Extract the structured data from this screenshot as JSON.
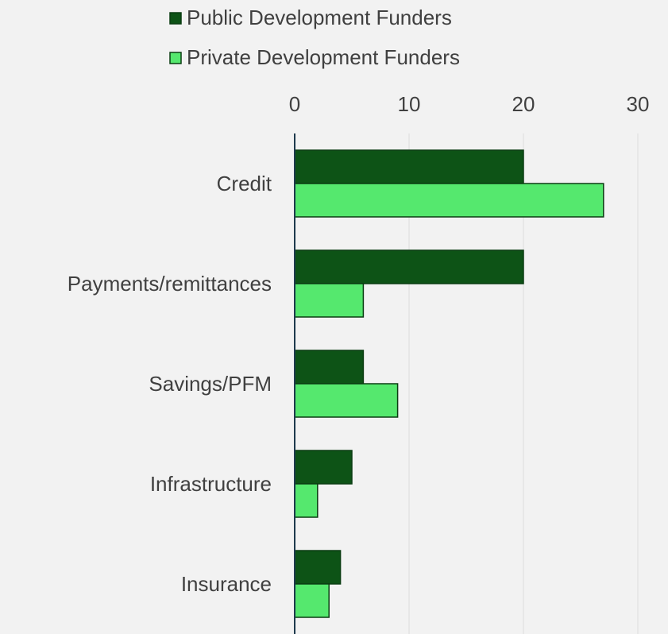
{
  "chart_data": {
    "type": "bar",
    "orientation": "horizontal",
    "categories": [
      "Credit",
      "Payments/remittances",
      "Savings/PFM",
      "Infrastructure",
      "Insurance"
    ],
    "series": [
      {
        "name": "Public Development Funders",
        "color": "#0d5316",
        "values": [
          20,
          20,
          6,
          5,
          4
        ]
      },
      {
        "name": "Private Development Funders",
        "color": "#55e86e",
        "values": [
          27,
          6,
          9,
          2,
          3
        ]
      }
    ],
    "xlim": [
      0,
      30
    ],
    "xticks": [
      0,
      10,
      20,
      30
    ],
    "grid": true,
    "legend": "top"
  }
}
